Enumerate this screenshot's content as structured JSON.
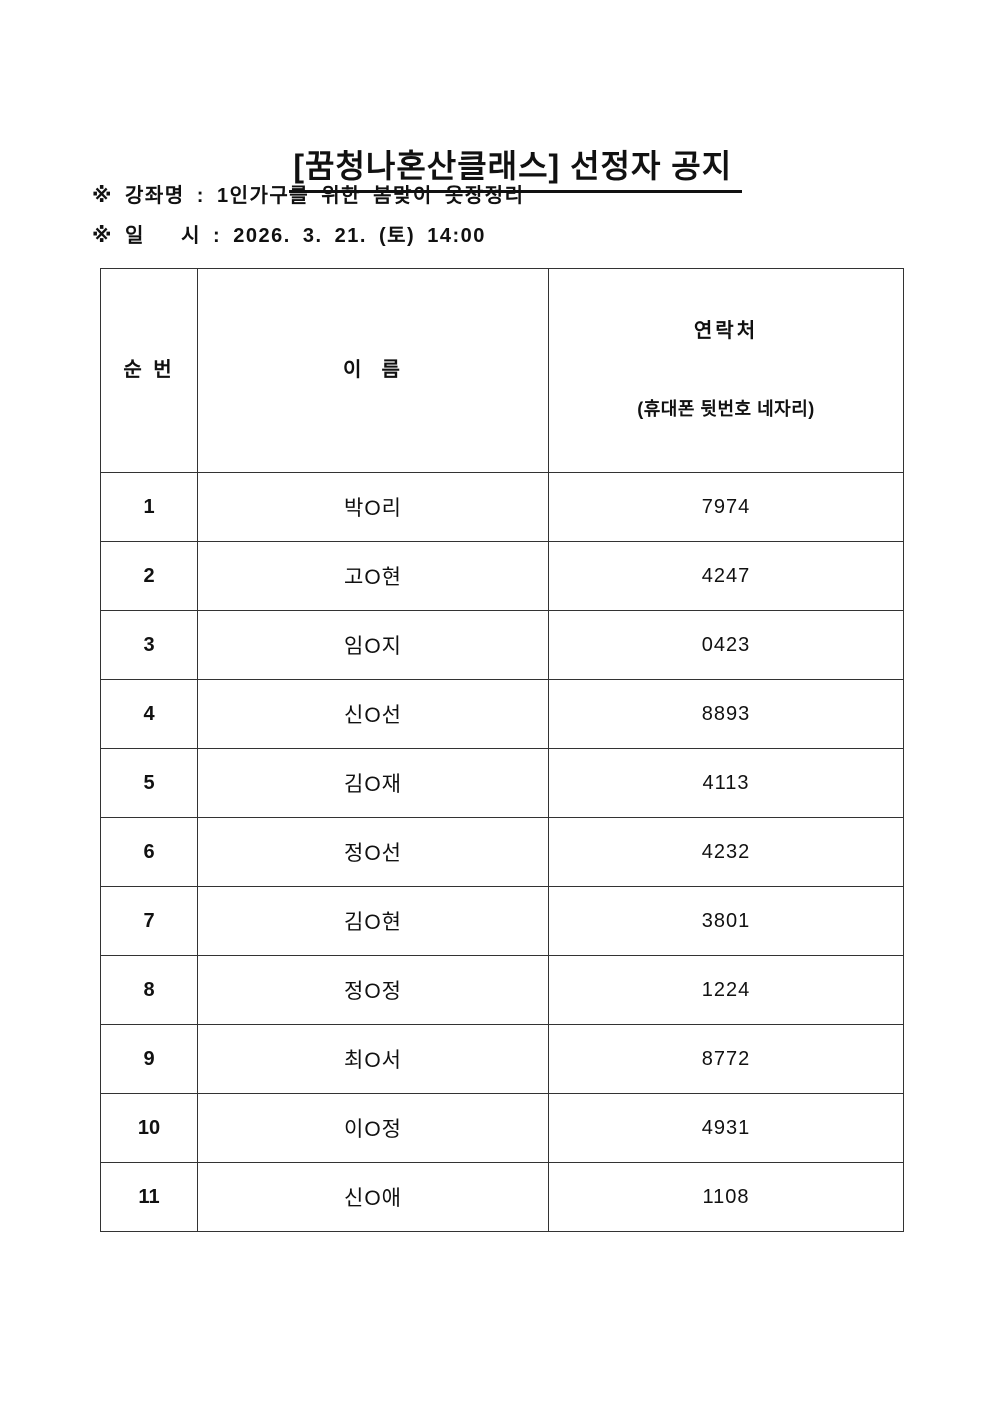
{
  "document": {
    "title": "[꿈청나혼산클래스] 선정자 공지",
    "info_lines": [
      "※ 강좌명 : 1인가구를 위한 봄맞이 옷장정리",
      "※ 일   시 : 2026. 3. 21. (토) 14:00"
    ]
  },
  "table": {
    "headers": {
      "no": "순 번",
      "name": "이  름",
      "contact_title": "연락처",
      "contact_subtitle": "(휴대폰 뒷번호 네자리)"
    },
    "rows": [
      {
        "no": "1",
        "name": "박O리",
        "phone": "7974"
      },
      {
        "no": "2",
        "name": "고O현",
        "phone": "4247"
      },
      {
        "no": "3",
        "name": "임O지",
        "phone": "0423"
      },
      {
        "no": "4",
        "name": "신O선",
        "phone": "8893"
      },
      {
        "no": "5",
        "name": "김O재",
        "phone": "4113"
      },
      {
        "no": "6",
        "name": "정O선",
        "phone": "4232"
      },
      {
        "no": "7",
        "name": "김O현",
        "phone": "3801"
      },
      {
        "no": "8",
        "name": "정O정",
        "phone": "1224"
      },
      {
        "no": "9",
        "name": "최O서",
        "phone": "8772"
      },
      {
        "no": "10",
        "name": "이O정",
        "phone": "4931"
      },
      {
        "no": "11",
        "name": "신O애",
        "phone": "1108"
      }
    ]
  },
  "colors": {
    "background": "#ffffff",
    "text": "#111111",
    "border": "#333333"
  }
}
